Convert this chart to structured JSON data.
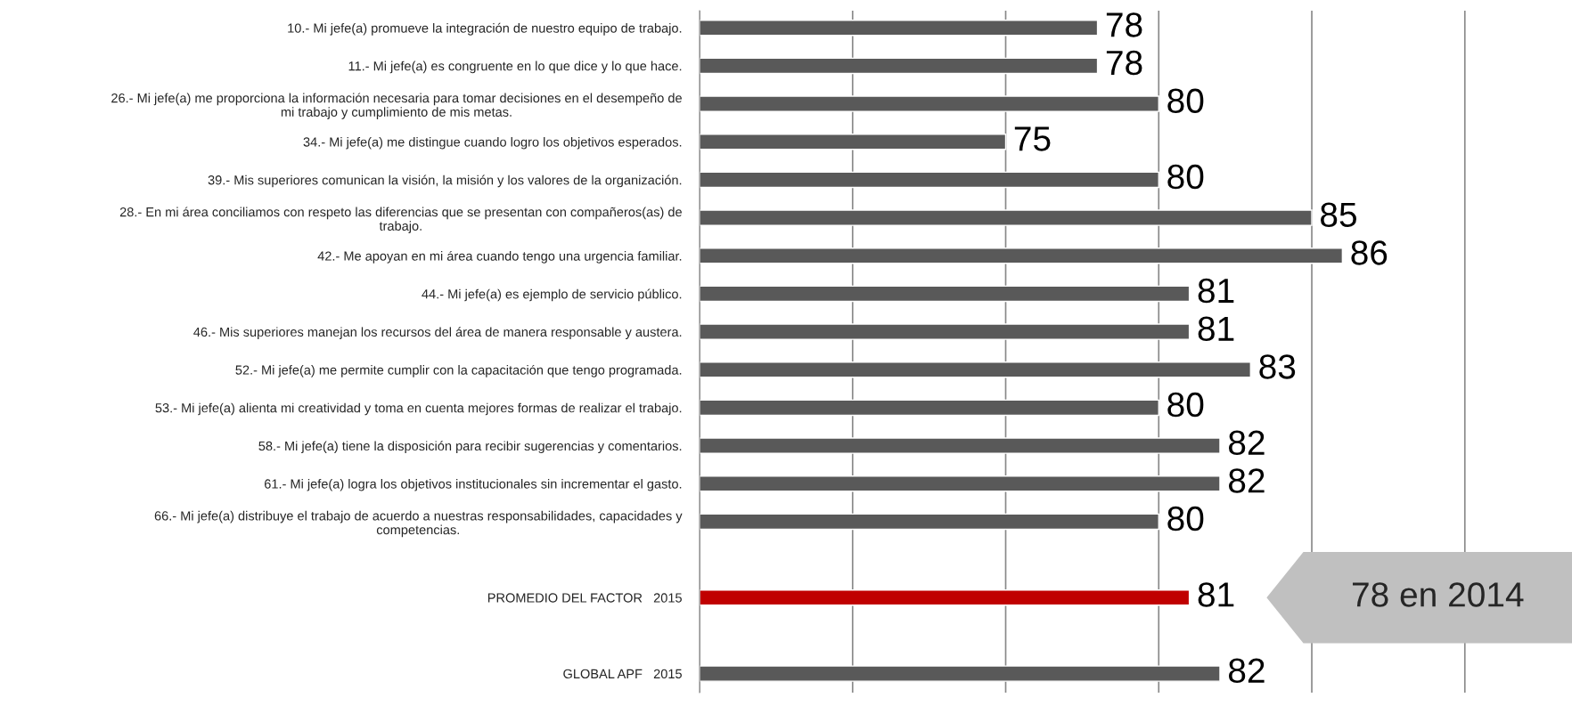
{
  "chart_data": {
    "type": "bar",
    "orientation": "horizontal",
    "categories": [
      "10.- Mi jefe(a) promueve la integración de nuestro equipo de trabajo.",
      "11.- Mi jefe(a) es congruente en lo que dice y lo que hace.",
      "26.- Mi jefe(a) me proporciona la información necesaria para tomar decisiones en el desempeño de\nmi trabajo y cumplimiento de mis metas.",
      "34.- Mi jefe(a) me distingue cuando logro los objetivos esperados.",
      "39.- Mis superiores comunican la visión, la misión y los valores de la organización.",
      "28.- En mi área conciliamos con respeto las diferencias que se presentan con compañeros(as) de\ntrabajo.",
      "42.- Me apoyan en mi área cuando tengo una urgencia familiar.",
      "44.- Mi jefe(a) es ejemplo de servicio público.",
      "46.- Mis superiores manejan los recursos del área de manera responsable y austera.",
      "52.- Mi jefe(a) me permite cumplir con la capacitación que tengo programada.",
      "53.- Mi jefe(a) alienta mi creatividad y toma en cuenta mejores formas de realizar el trabajo.",
      "58.- Mi jefe(a) tiene la disposición para recibir sugerencias y comentarios.",
      "61.- Mi jefe(a) logra los objetivos institucionales sin incrementar el gasto.",
      "66.- Mi jefe(a) distribuye el trabajo de acuerdo a nuestras responsabilidades, capacidades y\ncompetencias.",
      null,
      "PROMEDIO DEL FACTOR   2015",
      null,
      "GLOBAL APF   2015"
    ],
    "values": [
      78,
      78,
      80,
      75,
      80,
      85,
      86,
      81,
      81,
      83,
      80,
      82,
      82,
      80,
      null,
      81,
      null,
      82
    ],
    "colors": [
      "#595959",
      "#595959",
      "#595959",
      "#595959",
      "#595959",
      "#595959",
      "#595959",
      "#595959",
      "#595959",
      "#595959",
      "#595959",
      "#595959",
      "#595959",
      "#595959",
      "#595959",
      "#c00000",
      "#595959",
      "#595959"
    ],
    "data_labels": true,
    "xlim": [
      65,
      93.5
    ],
    "xticks": [
      {
        "value": 65,
        "label": null
      },
      {
        "value": 70,
        "label": null
      },
      {
        "value": 75,
        "label": null
      },
      {
        "value": 80,
        "label": null
      },
      {
        "value": 85,
        "label": null
      },
      {
        "value": 90,
        "label": null
      }
    ],
    "grid": "x",
    "annotations": [
      "78 en 2014"
    ]
  }
}
